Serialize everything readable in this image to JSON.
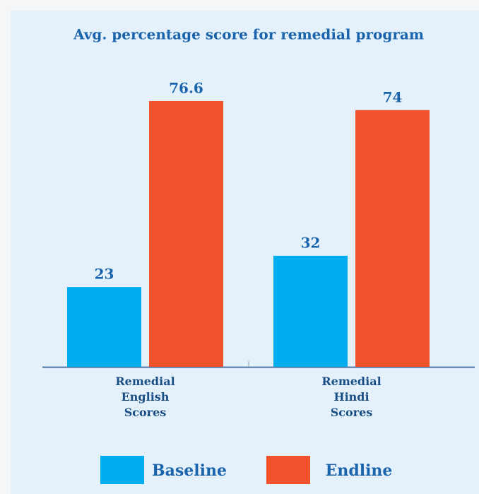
{
  "chart_data": {
    "type": "bar",
    "title": "Avg. percentage score for remedial program",
    "categories": [
      "Remedial English Scores",
      "Remedial Hindi Scores"
    ],
    "series": [
      {
        "name": "Baseline",
        "color": "#00aeef",
        "values": [
          23,
          32
        ]
      },
      {
        "name": "Endline",
        "color": "#f0522b",
        "values": [
          76.6,
          74
        ]
      }
    ]
  }
}
